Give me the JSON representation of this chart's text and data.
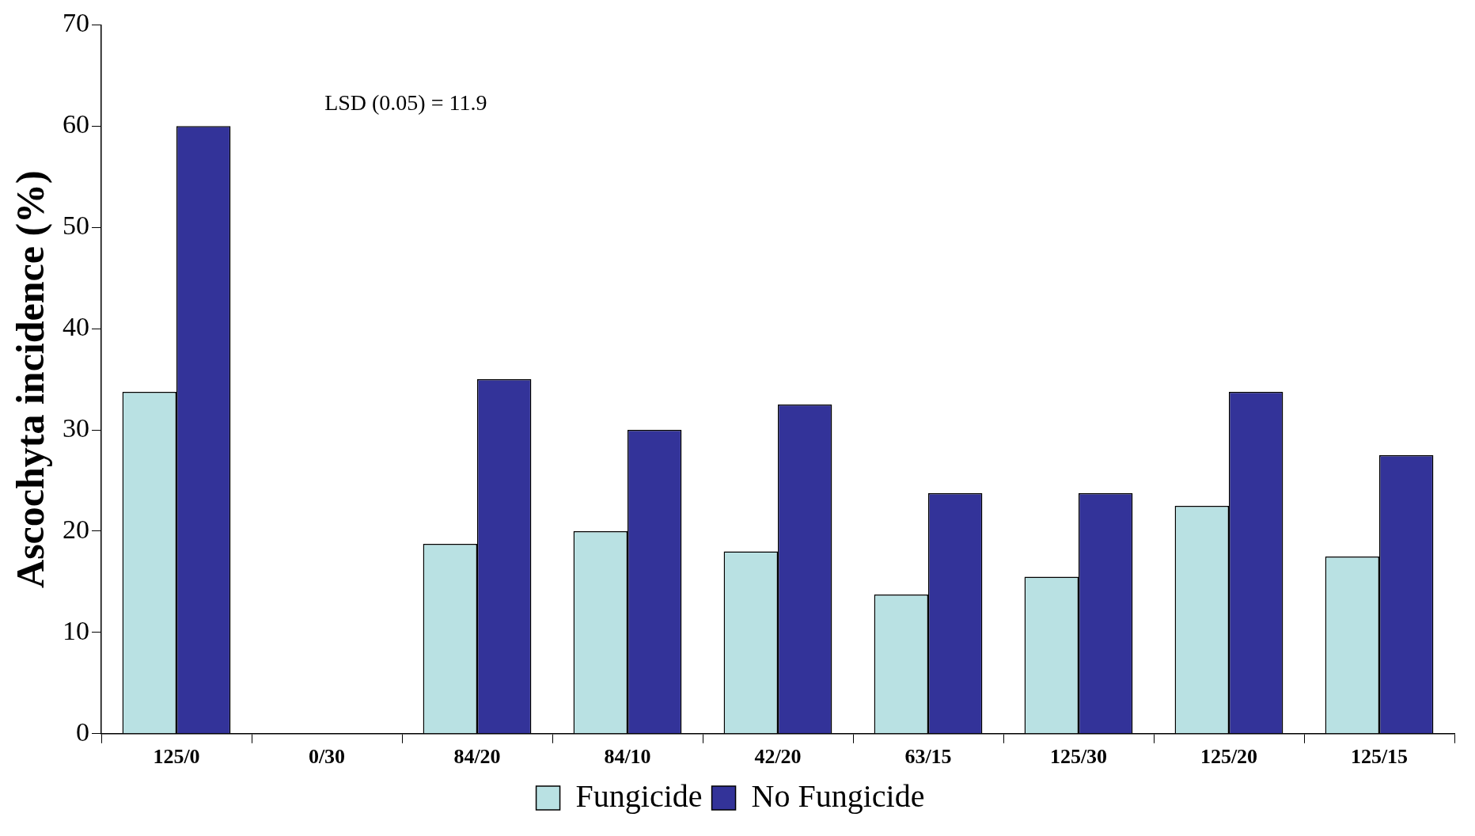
{
  "chart_data": {
    "type": "bar",
    "ylabel": "Ascochyta incidence (%)",
    "categories": [
      "125/0",
      "0/30",
      "84/20",
      "84/10",
      "42/20",
      "63/15",
      "125/30",
      "125/20",
      "125/15"
    ],
    "series": [
      {
        "name": "Fungicide",
        "color": "#b9e1e3",
        "values": [
          33.75,
          0,
          18.75,
          20,
          18,
          13.75,
          15.5,
          22.5,
          17.5
        ]
      },
      {
        "name": "No Fungicide",
        "color": "#333399",
        "values": [
          60,
          0,
          35,
          30,
          32.5,
          23.75,
          23.75,
          33.75,
          27.5
        ]
      }
    ],
    "ylim": [
      0,
      70
    ],
    "yticks": [
      0,
      10,
      20,
      30,
      40,
      50,
      60,
      70
    ],
    "grid": false,
    "legend": "bottom",
    "annotations": [
      "LSD (0.05) = 11.9"
    ]
  }
}
